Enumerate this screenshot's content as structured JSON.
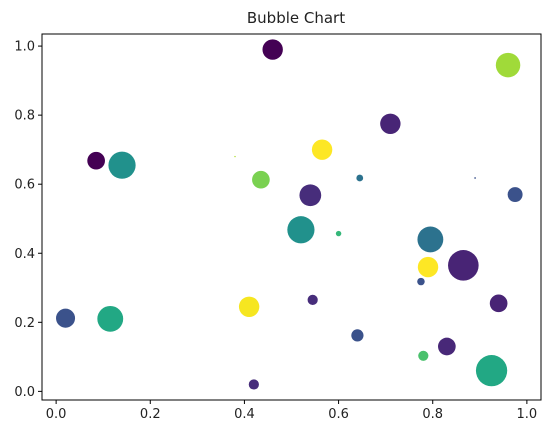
{
  "chart_data": {
    "type": "scatter",
    "title": "Bubble Chart",
    "xlabel": "",
    "ylabel": "",
    "xlim": [
      -0.03,
      1.03
    ],
    "ylim": [
      -0.025,
      1.035
    ],
    "grid": false,
    "legend": "none",
    "x_ticks": [
      {
        "value": 0.0,
        "label": "0.0"
      },
      {
        "value": 0.2,
        "label": "0.2"
      },
      {
        "value": 0.4,
        "label": "0.4"
      },
      {
        "value": 0.6,
        "label": "0.6"
      },
      {
        "value": 0.8,
        "label": "0.8"
      },
      {
        "value": 1.0,
        "label": "1.0"
      }
    ],
    "y_ticks": [
      {
        "value": 0.0,
        "label": "0.0"
      },
      {
        "value": 0.2,
        "label": "0.2"
      },
      {
        "value": 0.4,
        "label": "0.4"
      },
      {
        "value": 0.6,
        "label": "0.6"
      },
      {
        "value": 0.8,
        "label": "0.8"
      },
      {
        "value": 1.0,
        "label": "1.0"
      }
    ],
    "colors": {
      "purple_dark": "#440154",
      "purple": "#472d7b",
      "indigo": "#3b528b",
      "blue": "#2c728e",
      "teal": "#21918c",
      "green_teal": "#28ae80",
      "green": "#5ec962",
      "lime": "#addc30",
      "yellow": "#fde725"
    },
    "points": [
      {
        "x": 0.46,
        "y": 0.99,
        "size": 0.6,
        "color": "#440154"
      },
      {
        "x": 0.96,
        "y": 0.945,
        "size": 0.72,
        "color": "#a0da39"
      },
      {
        "x": 0.71,
        "y": 0.775,
        "size": 0.6,
        "color": "#482576"
      },
      {
        "x": 0.565,
        "y": 0.7,
        "size": 0.6,
        "color": "#fde725"
      },
      {
        "x": 0.08,
        "y": 0.668,
        "size": 0.3,
        "color": "#5ec962"
      },
      {
        "x": 0.085,
        "y": 0.668,
        "size": 0.52,
        "color": "#440154"
      },
      {
        "x": 0.14,
        "y": 0.655,
        "size": 0.8,
        "color": "#21918c"
      },
      {
        "x": 0.38,
        "y": 0.68,
        "size": 0.04,
        "color": "#addc30"
      },
      {
        "x": 0.435,
        "y": 0.613,
        "size": 0.52,
        "color": "#7ad151"
      },
      {
        "x": 0.645,
        "y": 0.618,
        "size": 0.2,
        "color": "#2c728e"
      },
      {
        "x": 0.89,
        "y": 0.618,
        "size": 0.05,
        "color": "#3b528b"
      },
      {
        "x": 0.54,
        "y": 0.568,
        "size": 0.64,
        "color": "#472d7b"
      },
      {
        "x": 0.975,
        "y": 0.57,
        "size": 0.44,
        "color": "#3b528b"
      },
      {
        "x": 0.52,
        "y": 0.468,
        "size": 0.8,
        "color": "#21918c"
      },
      {
        "x": 0.6,
        "y": 0.457,
        "size": 0.16,
        "color": "#35b779"
      },
      {
        "x": 0.795,
        "y": 0.44,
        "size": 0.76,
        "color": "#2c728e"
      },
      {
        "x": 0.865,
        "y": 0.365,
        "size": 0.9,
        "color": "#482475"
      },
      {
        "x": 0.79,
        "y": 0.36,
        "size": 0.6,
        "color": "#fde725"
      },
      {
        "x": 0.775,
        "y": 0.318,
        "size": 0.22,
        "color": "#3b528b"
      },
      {
        "x": 0.545,
        "y": 0.265,
        "size": 0.3,
        "color": "#472d7b"
      },
      {
        "x": 0.94,
        "y": 0.255,
        "size": 0.52,
        "color": "#482475"
      },
      {
        "x": 0.41,
        "y": 0.245,
        "size": 0.6,
        "color": "#f6e620"
      },
      {
        "x": 0.02,
        "y": 0.212,
        "size": 0.56,
        "color": "#3b528b"
      },
      {
        "x": 0.115,
        "y": 0.21,
        "size": 0.76,
        "color": "#22a884"
      },
      {
        "x": 0.64,
        "y": 0.162,
        "size": 0.36,
        "color": "#3b528b"
      },
      {
        "x": 0.83,
        "y": 0.13,
        "size": 0.52,
        "color": "#482878"
      },
      {
        "x": 0.78,
        "y": 0.103,
        "size": 0.3,
        "color": "#4ac16d"
      },
      {
        "x": 0.925,
        "y": 0.06,
        "size": 0.92,
        "color": "#22a884"
      },
      {
        "x": 0.42,
        "y": 0.02,
        "size": 0.3,
        "color": "#472d7b"
      }
    ]
  }
}
